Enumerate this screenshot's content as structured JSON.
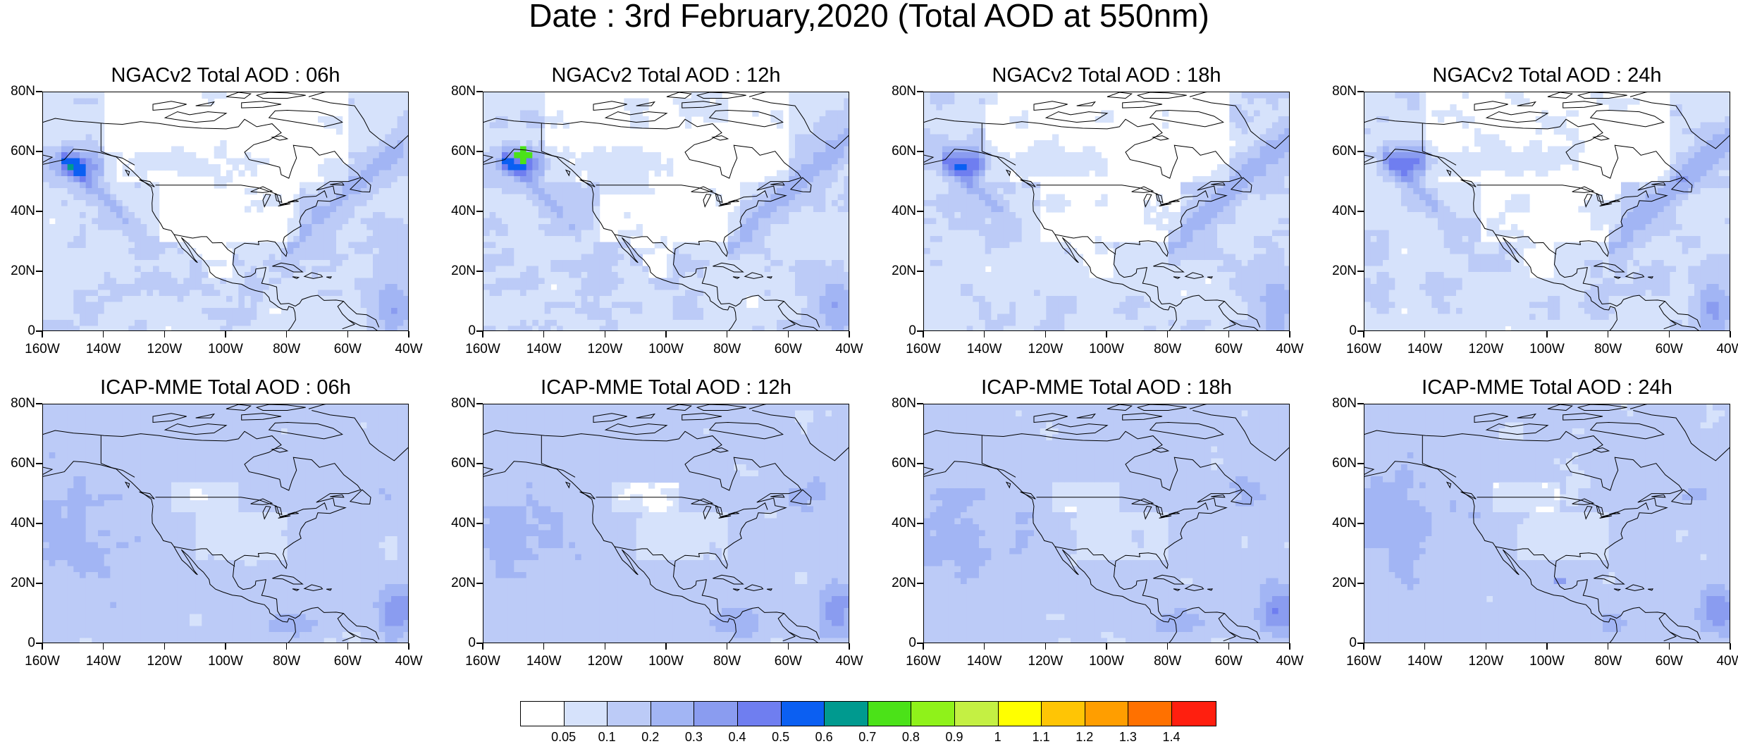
{
  "title": "Date : 3rd February,2020 (Total AOD at 550nm)",
  "panels": [
    {
      "title": "NGACv2 Total AOD : 06h",
      "model": "ngac",
      "hour": 6
    },
    {
      "title": "NGACv2 Total AOD : 12h",
      "model": "ngac",
      "hour": 12
    },
    {
      "title": "NGACv2 Total AOD : 18h",
      "model": "ngac",
      "hour": 18
    },
    {
      "title": "NGACv2 Total AOD : 24h",
      "model": "ngac",
      "hour": 24
    },
    {
      "title": "ICAP-MME Total AOD : 06h",
      "model": "icap",
      "hour": 6
    },
    {
      "title": "ICAP-MME Total AOD : 12h",
      "model": "icap",
      "hour": 12
    },
    {
      "title": "ICAP-MME Total AOD : 18h",
      "model": "icap",
      "hour": 18
    },
    {
      "title": "ICAP-MME Total AOD : 24h",
      "model": "icap",
      "hour": 24
    }
  ],
  "lat_labels": [
    "80N",
    "60N",
    "40N",
    "20N",
    "0"
  ],
  "lon_labels": [
    "160W",
    "140W",
    "120W",
    "100W",
    "80W",
    "60W",
    "40W"
  ],
  "colorbar": {
    "colors": [
      "#ffffff",
      "#d6e2fb",
      "#bccbf7",
      "#a2b5f4",
      "#8a9cf0",
      "#6f7ef0",
      "#0b5ff2",
      "#009a8f",
      "#4be218",
      "#8ff21a",
      "#c4f043",
      "#ffff00",
      "#ffc505",
      "#ff9e00",
      "#ff7100",
      "#ff1f0f"
    ],
    "labels": [
      "0.05",
      "0.1",
      "0.2",
      "0.3",
      "0.4",
      "0.5",
      "0.6",
      "0.7",
      "0.8",
      "0.9",
      "1",
      "1.1",
      "1.2",
      "1.3",
      "1.4"
    ]
  },
  "chart_data": {
    "type": "heatmap",
    "variable": "Total AOD at 550nm",
    "date": "3rd February,2020",
    "x_range": [
      "160W",
      "40W"
    ],
    "y_range": [
      "0",
      "80N"
    ]
  }
}
